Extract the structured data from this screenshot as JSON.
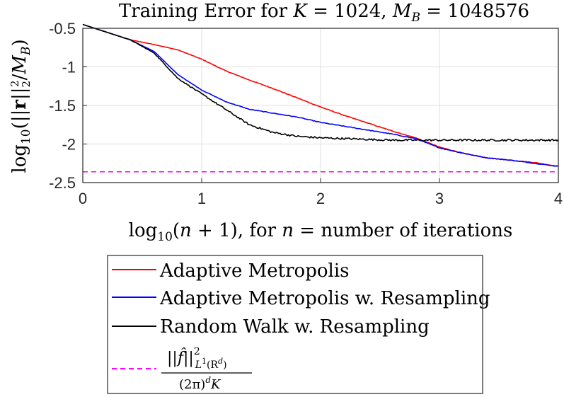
{
  "chart_data": {
    "type": "line",
    "title": "Training Error for K = 1024, M_B = 1048576",
    "title_parts": {
      "prefix": "Training Error for ",
      "k_var": "K",
      "k_eq": " = 1024, ",
      "m_var": "M",
      "m_sub": "B",
      "m_eq": " = 1048576"
    },
    "xlabel": "log10(n + 1), for n = number of iterations",
    "xlabel_parts": {
      "fn": "log",
      "sub": "10",
      "arg_open": "(",
      "arg_var": "n",
      "arg_rest": " + 1), for ",
      "n_var": "n",
      "tail": " = number of iterations"
    },
    "ylabel": "log10(||r||_2^2 / M_B)",
    "ylabel_parts": {
      "fn": "log",
      "sub": "10",
      "open": "(||",
      "r": "r",
      "close": "||",
      "sub2": "2",
      "sup2": "2",
      "slash": "/",
      "m_var": "M",
      "m_sub": "B",
      "end": ")"
    },
    "xlim": [
      0,
      4
    ],
    "ylim": [
      -2.5,
      -0.5
    ],
    "xticks": [
      0,
      1,
      2,
      3,
      4
    ],
    "xtick_labels": [
      "0",
      "1",
      "2",
      "3",
      "4"
    ],
    "yticks": [
      -0.5,
      -1,
      -1.5,
      -2,
      -2.5
    ],
    "ytick_labels": [
      "-0.5",
      "-1",
      "-1.5",
      "-2",
      "-2.5"
    ],
    "grid": true,
    "legend_position": "below",
    "series": [
      {
        "name": "Adaptive Metropolis",
        "color": "#ff0000",
        "style": "solid",
        "points": [
          [
            0,
            -0.45
          ],
          [
            0.2,
            -0.55
          ],
          [
            0.4,
            -0.65
          ],
          [
            0.6,
            -0.71
          ],
          [
            0.8,
            -0.78
          ],
          [
            1.0,
            -0.9
          ],
          [
            1.2,
            -1.05
          ],
          [
            1.4,
            -1.17
          ],
          [
            1.6,
            -1.28
          ],
          [
            1.8,
            -1.4
          ],
          [
            2.0,
            -1.52
          ],
          [
            2.2,
            -1.63
          ],
          [
            2.4,
            -1.73
          ],
          [
            2.6,
            -1.83
          ],
          [
            2.8,
            -1.92
          ],
          [
            3.0,
            -2.04
          ],
          [
            3.2,
            -2.12
          ],
          [
            3.4,
            -2.18
          ],
          [
            3.6,
            -2.21
          ],
          [
            3.8,
            -2.24
          ],
          [
            4.0,
            -2.29
          ]
        ]
      },
      {
        "name": "Adaptive Metropolis w. Resampling",
        "color": "#0000ff",
        "style": "solid",
        "points": [
          [
            0,
            -0.45
          ],
          [
            0.2,
            -0.55
          ],
          [
            0.4,
            -0.65
          ],
          [
            0.6,
            -0.8
          ],
          [
            0.8,
            -1.1
          ],
          [
            1.0,
            -1.3
          ],
          [
            1.2,
            -1.45
          ],
          [
            1.4,
            -1.55
          ],
          [
            1.6,
            -1.6
          ],
          [
            1.8,
            -1.65
          ],
          [
            2.0,
            -1.72
          ],
          [
            2.2,
            -1.77
          ],
          [
            2.4,
            -1.82
          ],
          [
            2.6,
            -1.87
          ],
          [
            2.8,
            -1.93
          ],
          [
            3.0,
            -2.05
          ],
          [
            3.2,
            -2.12
          ],
          [
            3.4,
            -2.18
          ],
          [
            3.6,
            -2.21
          ],
          [
            3.8,
            -2.25
          ],
          [
            4.0,
            -2.29
          ]
        ]
      },
      {
        "name": "Random Walk w. Resampling",
        "color": "#000000",
        "style": "solid",
        "points": [
          [
            0,
            -0.45
          ],
          [
            0.2,
            -0.55
          ],
          [
            0.4,
            -0.65
          ],
          [
            0.6,
            -0.82
          ],
          [
            0.8,
            -1.15
          ],
          [
            1.0,
            -1.35
          ],
          [
            1.2,
            -1.55
          ],
          [
            1.4,
            -1.75
          ],
          [
            1.6,
            -1.85
          ],
          [
            1.8,
            -1.9
          ],
          [
            2.0,
            -1.92
          ],
          [
            2.2,
            -1.93
          ],
          [
            2.4,
            -1.94
          ],
          [
            2.6,
            -1.95
          ],
          [
            2.8,
            -1.95
          ],
          [
            3.0,
            -1.95
          ],
          [
            3.2,
            -1.95
          ],
          [
            3.4,
            -1.95
          ],
          [
            3.6,
            -1.95
          ],
          [
            3.8,
            -1.95
          ],
          [
            4.0,
            -1.95
          ]
        ],
        "noise": 0.012
      },
      {
        "name": "||f̂||²_{L¹(R^d)} / ((2π)^d K)",
        "color": "#ff00ff",
        "style": "dashed",
        "constant": -2.36
      }
    ],
    "legend_labels": {
      "s0": "Adaptive Metropolis",
      "s1": "Adaptive Metropolis w. Resampling",
      "s2": "Random Walk w. Resampling",
      "s3_num_norm_open": "||",
      "s3_num_f": "f̂",
      "s3_num_norm_close": "||",
      "s3_num_sup": "2",
      "s3_num_sub": "L",
      "s3_num_sub_sup": "1",
      "s3_num_sub_rest": "(R",
      "s3_num_sub_d": "d",
      "s3_num_sub_end": ")",
      "s3_den": "(2π)",
      "s3_den_sup": "d",
      "s3_den_k": "K"
    }
  }
}
